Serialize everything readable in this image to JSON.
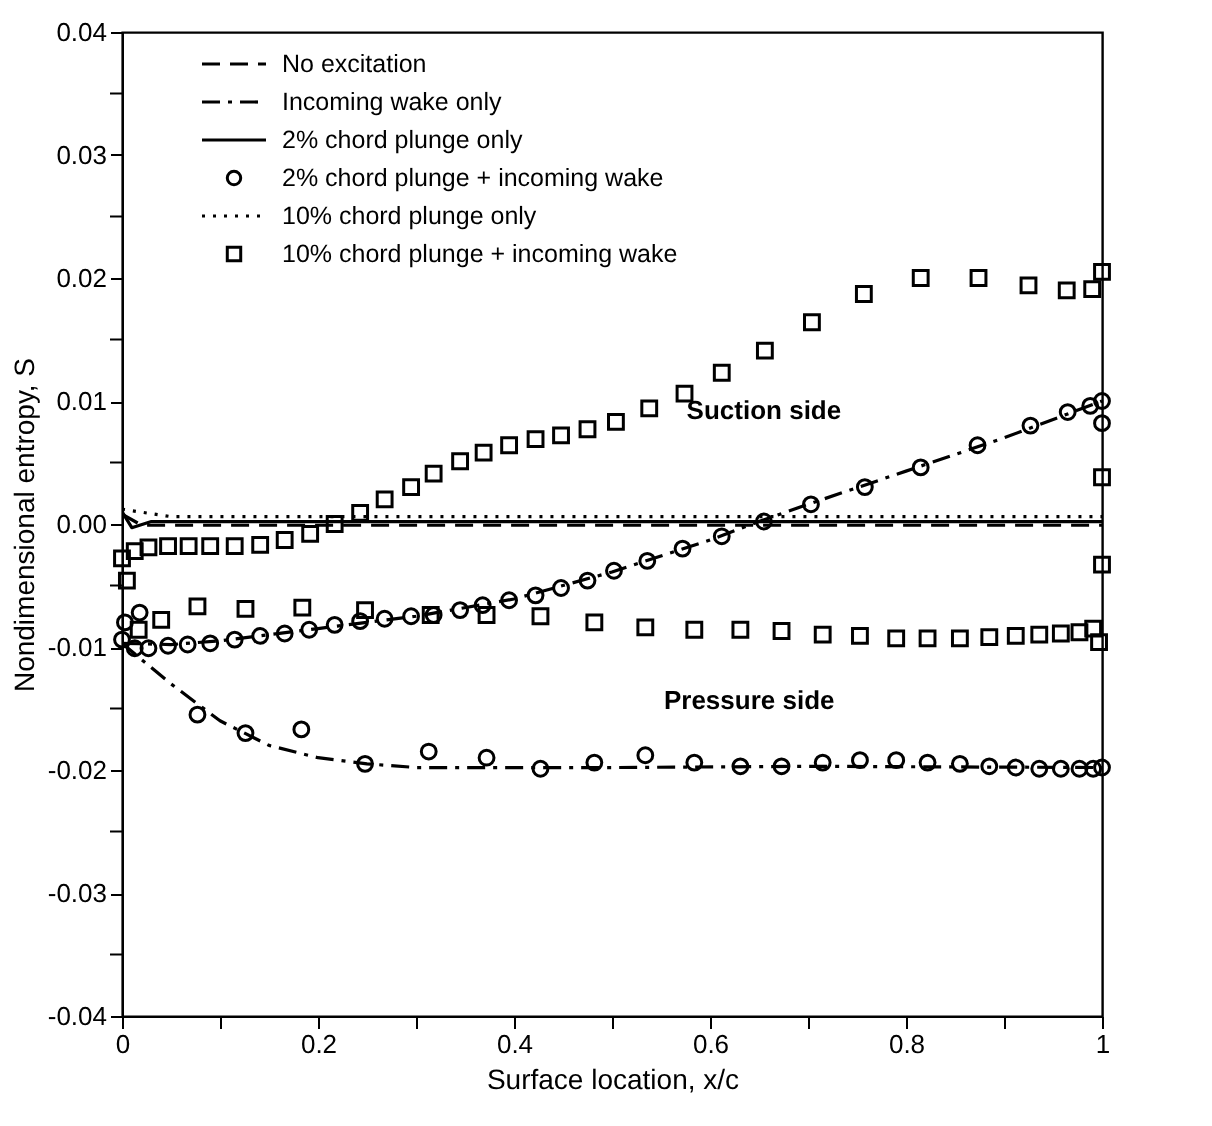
{
  "chart_data": {
    "type": "line",
    "xlabel": "Surface location, x/c",
    "ylabel": "Nondimensional entropy, S",
    "xlim": [
      0,
      1
    ],
    "ylim": [
      -0.04,
      0.04
    ],
    "xticks": [
      0,
      {
        "value": 0.1,
        "label": null
      },
      0.2,
      {
        "value": 0.3,
        "label": null
      },
      0.4,
      {
        "value": 0.5,
        "label": null
      },
      0.6,
      {
        "value": 0.7,
        "label": null
      },
      0.8,
      {
        "value": 0.9,
        "label": null
      },
      1
    ],
    "yticks": [
      {
        "value": -0.04,
        "label": "-0.04"
      },
      {
        "value": -0.035,
        "label": null
      },
      {
        "value": -0.03,
        "label": "-0.03"
      },
      {
        "value": -0.025,
        "label": null
      },
      {
        "value": -0.02,
        "label": "-0.02"
      },
      {
        "value": -0.015,
        "label": null
      },
      {
        "value": -0.01,
        "label": "-0.01"
      },
      {
        "value": -0.005,
        "label": null
      },
      {
        "value": 0,
        "label": "0.00"
      },
      {
        "value": 0.005,
        "label": null
      },
      {
        "value": 0.01,
        "label": "0.01"
      },
      {
        "value": 0.015,
        "label": null
      },
      {
        "value": 0.02,
        "label": "0.02"
      },
      {
        "value": 0.025,
        "label": null
      },
      {
        "value": 0.03,
        "label": "0.03"
      },
      {
        "value": 0.035,
        "label": null
      },
      {
        "value": 0.04,
        "label": "0.04"
      }
    ],
    "grid": false,
    "legend": "top left",
    "series": [
      {
        "name": "No excitation",
        "line_style": "dashed",
        "color": "#000000",
        "x": [
          0,
          0.02,
          0.5,
          1
        ],
        "values": [
          0.0008,
          -0.0001,
          -0.0001,
          -0.0001
        ]
      },
      {
        "name": "Incoming wake only",
        "line_style": "dashdot",
        "color": "#000000",
        "x": [
          0,
          0.05,
          0.1,
          0.2,
          0.3,
          0.4,
          0.5,
          0.6,
          0.65,
          0.7,
          0.8,
          0.9,
          1,
          null,
          0,
          0.05,
          0.1,
          0.15,
          0.2,
          0.25,
          0.3,
          0.5,
          0.7,
          1
        ],
        "values": [
          -0.0097,
          -0.0098,
          -0.0095,
          -0.0085,
          -0.0075,
          -0.0061,
          -0.0039,
          -0.0013,
          0.0002,
          0.0016,
          0.0043,
          0.007,
          0.01,
          null,
          -0.0097,
          -0.013,
          -0.016,
          -0.018,
          -0.019,
          -0.0195,
          -0.0198,
          -0.0198,
          -0.0197,
          -0.0198
        ]
      },
      {
        "name": "2% chord plunge only",
        "line_style": "solid",
        "color": "#000000",
        "x": [
          0,
          0.01,
          0.03,
          0.2,
          1
        ],
        "values": [
          0.001,
          -0.0003,
          0.0002,
          0.0002,
          0.0002
        ]
      },
      {
        "name": "2% chord plunge + incoming wake",
        "type": "scatter",
        "marker": "circle",
        "color": "#000000",
        "x": [
          0,
          0.013,
          0.027,
          0.047,
          0.067,
          0.09,
          0.115,
          0.141,
          0.166,
          0.191,
          0.217,
          0.243,
          0.268,
          0.295,
          0.318,
          0.345,
          0.368,
          0.395,
          0.422,
          0.448,
          0.475,
          0.502,
          0.536,
          0.572,
          0.612,
          0.655,
          0.703,
          0.758,
          0.815,
          0.873,
          0.927,
          0.965,
          0.988,
          1,
          1,
          0.003,
          0.018,
          0.077,
          0.126,
          0.183,
          0.248,
          0.313,
          0.372,
          0.427,
          0.482,
          0.534,
          0.584,
          0.631,
          0.673,
          0.715,
          0.753,
          0.79,
          0.822,
          0.855,
          0.885,
          0.912,
          0.936,
          0.958,
          0.977,
          0.991,
          1
        ],
        "values": [
          -0.0094,
          -0.0101,
          -0.0101,
          -0.0099,
          -0.0098,
          -0.0097,
          -0.0094,
          -0.0091,
          -0.0089,
          -0.0086,
          -0.0082,
          -0.0079,
          -0.0077,
          -0.0075,
          -0.0074,
          -0.007,
          -0.0066,
          -0.0062,
          -0.0058,
          -0.0052,
          -0.0046,
          -0.0038,
          -0.003,
          -0.002,
          -0.001,
          0.0002,
          0.0016,
          0.003,
          0.0046,
          0.0064,
          0.008,
          0.0091,
          0.0096,
          0.01,
          0.0082,
          -0.008,
          -0.0072,
          -0.0155,
          -0.017,
          -0.0167,
          -0.0195,
          -0.0185,
          -0.019,
          -0.0199,
          -0.0194,
          -0.0188,
          -0.0194,
          -0.0197,
          -0.0197,
          -0.0194,
          -0.0192,
          -0.0192,
          -0.0194,
          -0.0195,
          -0.0197,
          -0.0198,
          -0.0199,
          -0.0199,
          -0.0199,
          -0.0199,
          -0.0198
        ]
      },
      {
        "name": "10% chord plunge only",
        "line_style": "dotted",
        "color": "#000000",
        "x": [
          0,
          0.05,
          0.5,
          1
        ],
        "values": [
          0.0012,
          0.0006,
          0.0006,
          0.0006
        ]
      },
      {
        "name": "10% chord plunge + incoming wake",
        "type": "scatter",
        "marker": "square",
        "color": "#000000",
        "x": [
          0,
          0.005,
          0.013,
          0.027,
          0.047,
          0.068,
          0.09,
          0.115,
          0.141,
          0.166,
          0.192,
          0.217,
          0.243,
          0.268,
          0.295,
          0.318,
          0.345,
          0.369,
          0.395,
          0.422,
          0.448,
          0.475,
          0.504,
          0.538,
          0.574,
          0.612,
          0.656,
          0.704,
          0.757,
          0.815,
          0.874,
          0.925,
          0.964,
          0.99,
          1,
          1,
          1,
          0.017,
          0.04,
          0.077,
          0.126,
          0.184,
          0.248,
          0.315,
          0.372,
          0.427,
          0.482,
          0.534,
          0.584,
          0.631,
          0.673,
          0.715,
          0.753,
          0.79,
          0.822,
          0.855,
          0.885,
          0.912,
          0.936,
          0.958,
          0.977,
          0.991,
          0.997
        ],
        "values": [
          -0.0028,
          -0.0046,
          -0.0022,
          -0.0019,
          -0.0018,
          -0.0018,
          -0.0018,
          -0.0018,
          -0.0017,
          -0.0013,
          -0.0008,
          0.0,
          0.0009,
          0.002,
          0.003,
          0.0041,
          0.0051,
          0.0058,
          0.0064,
          0.0069,
          0.0072,
          0.0077,
          0.0083,
          0.0094,
          0.0106,
          0.0123,
          0.0141,
          0.0164,
          0.0187,
          0.02,
          0.02,
          0.0194,
          0.019,
          0.0191,
          0.0205,
          0.0038,
          -0.0033,
          -0.0086,
          -0.0078,
          -0.0067,
          -0.0069,
          -0.0068,
          -0.007,
          -0.0074,
          -0.0074,
          -0.0075,
          -0.008,
          -0.0084,
          -0.0086,
          -0.0086,
          -0.0087,
          -0.009,
          -0.0091,
          -0.0093,
          -0.0093,
          -0.0093,
          -0.0092,
          -0.0091,
          -0.009,
          -0.0089,
          -0.0088,
          -0.0085,
          -0.0096
        ]
      }
    ],
    "annotations": [
      "Suction side",
      "Pressure side"
    ]
  }
}
